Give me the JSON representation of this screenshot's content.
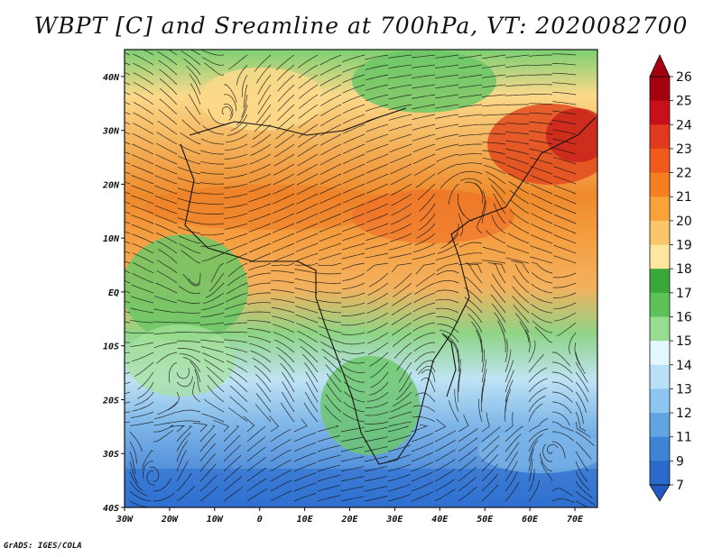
{
  "title": "WBPT [C] and Sreamline at 700hPa, VT: 2020082700",
  "credit": "GrADS: IGES/COLA",
  "map": {
    "variable": "Wet-bulb potential temperature",
    "units": "C",
    "level": "700hPa",
    "valid_time": "2020082700",
    "lon_range": [
      -30,
      75
    ],
    "lat_range": [
      -40,
      45
    ],
    "x_ticks": [
      "30W",
      "20W",
      "10W",
      "0",
      "10E",
      "20E",
      "30E",
      "40E",
      "50E",
      "60E",
      "70E"
    ],
    "y_ticks": [
      "40N",
      "30N",
      "20N",
      "10N",
      "EQ",
      "10S",
      "20S",
      "30S",
      "40S"
    ]
  },
  "colorbar": {
    "labels": [
      "26",
      "25",
      "24",
      "23",
      "22",
      "21",
      "20",
      "19",
      "18",
      "17",
      "16",
      "15",
      "14",
      "13",
      "12",
      "11",
      "9",
      "7"
    ],
    "colors": [
      "#a50010",
      "#c8101a",
      "#e23a1e",
      "#f05a1a",
      "#f57f20",
      "#f9a23a",
      "#fbc66a",
      "#fde79e",
      "#3aa73a",
      "#5cc35a",
      "#97dd90",
      "#e3f7ff",
      "#b9e0f6",
      "#8ec5ee",
      "#61a4e2",
      "#3d84d6",
      "#2a6acb"
    ]
  }
}
